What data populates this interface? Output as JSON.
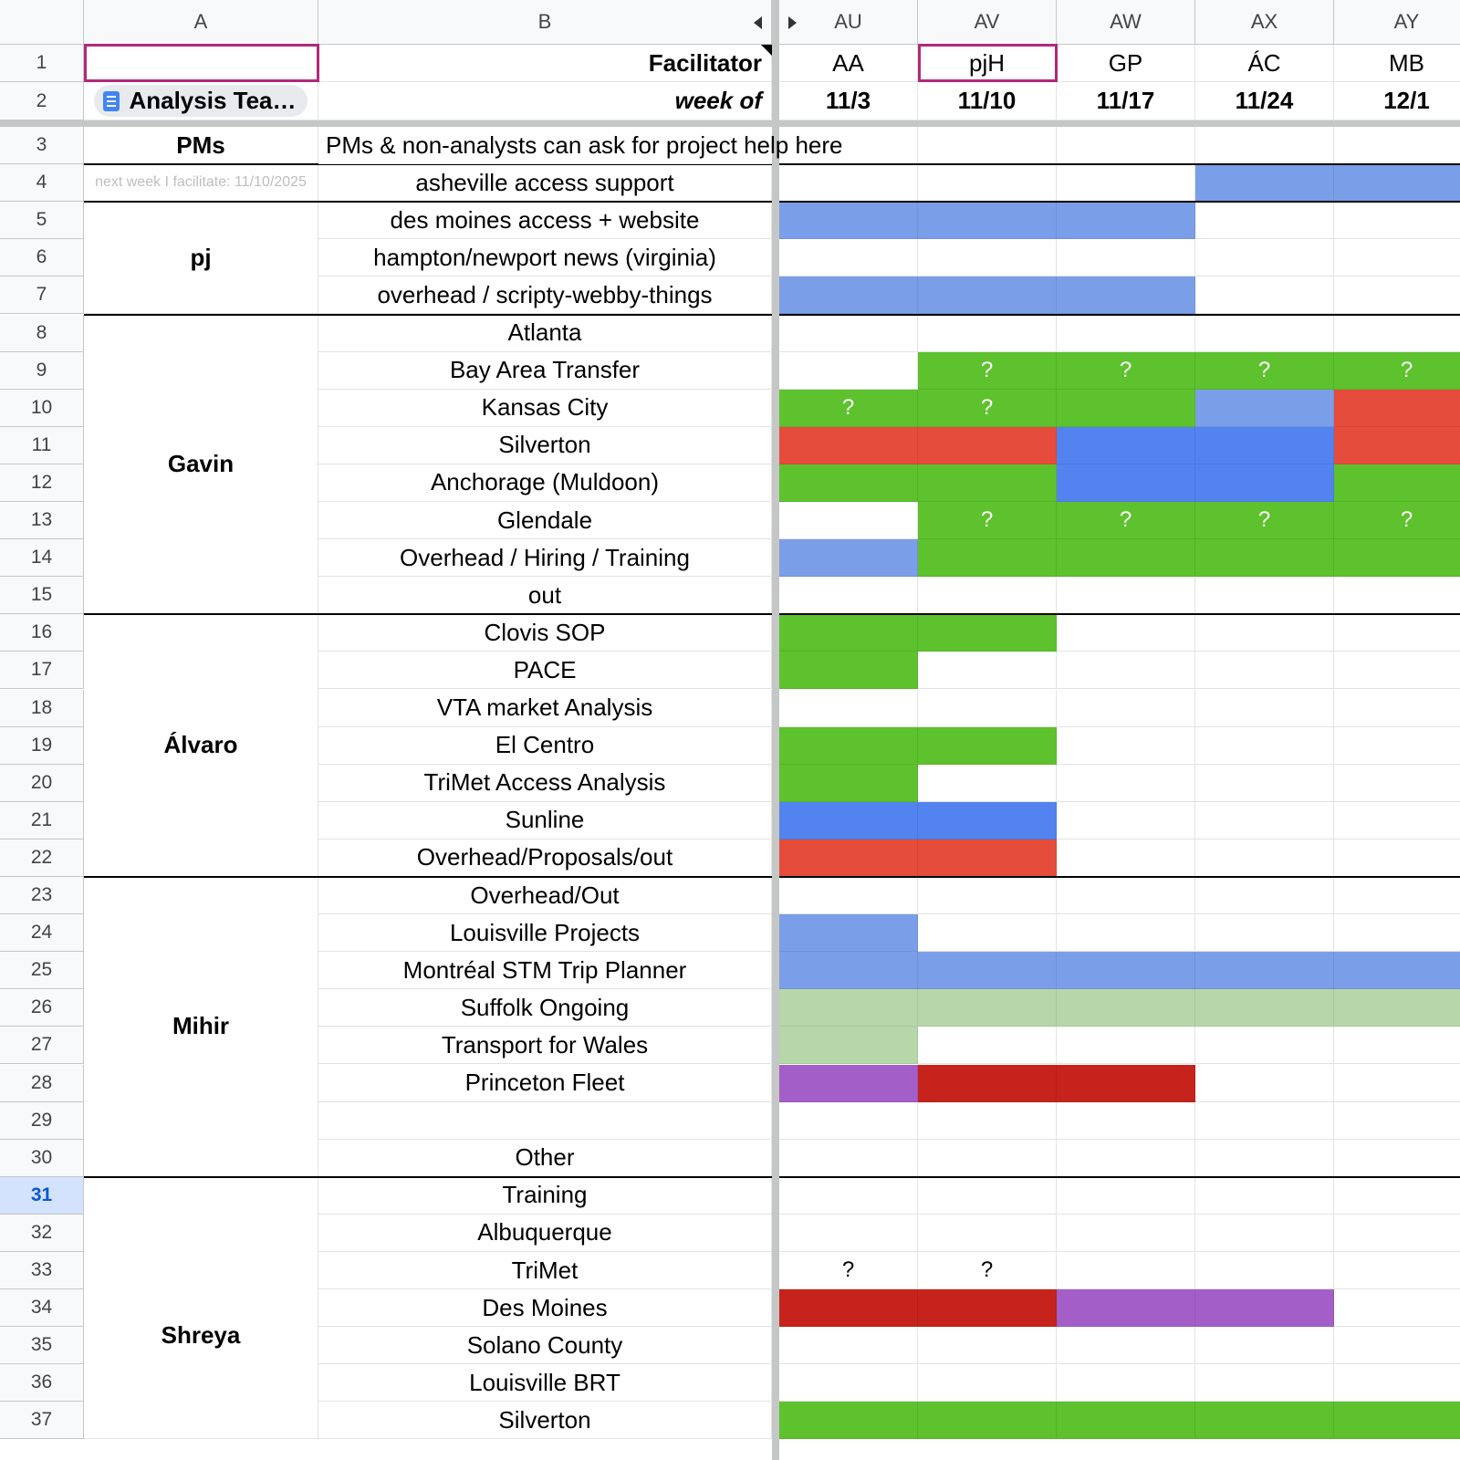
{
  "columns": {
    "row_header": "",
    "A": "A",
    "B": "B",
    "AU": "AU",
    "AV": "AV",
    "AW": "AW",
    "AX": "AX",
    "AY": "AY"
  },
  "header_rows": {
    "facilitator_label": "Facilitator",
    "week_of_label": "week of",
    "facilitators": [
      "AA",
      "pjH",
      "GP",
      "ÁC",
      "MB"
    ],
    "weeks": [
      "11/3",
      "11/10",
      "11/17",
      "11/24",
      "12/1"
    ],
    "chip_label": "Analysis Tea…"
  },
  "pms_row": {
    "label": "PMs",
    "note": "PMs & non-analysts can ask for project help here"
  },
  "facilitate_hint": "next week I facilitate: 11/10/2025",
  "people": [
    "pj",
    "Gavin",
    "Álvaro",
    "Mihir",
    "Shreya"
  ],
  "colors": {
    "blue_light": "#7b9ee8",
    "blue": "#5383ef",
    "green": "#5dc22d",
    "red": "#e54c3c",
    "dark_red": "#c5231b",
    "purple": "#a45ec8",
    "light_green": "#b6d7a8",
    "selection": "#b3287c"
  },
  "rows": [
    {
      "num": "1"
    },
    {
      "num": "2"
    },
    {
      "num": "3"
    },
    {
      "num": "4",
      "project": "asheville access support",
      "cells": [
        "",
        "",
        "",
        "blue_light",
        "blue_light"
      ]
    },
    {
      "num": "5",
      "project": "des moines access + website",
      "cells": [
        "blue_light",
        "blue_light",
        "blue_light",
        "",
        ""
      ]
    },
    {
      "num": "6",
      "project": "hampton/newport news (virginia)",
      "cells": [
        "",
        "",
        "",
        "",
        ""
      ]
    },
    {
      "num": "7",
      "project": "overhead / scripty-webby-things",
      "cells": [
        "blue_light",
        "blue_light",
        "blue_light",
        "",
        ""
      ]
    },
    {
      "num": "8",
      "project": "Atlanta",
      "cells": [
        "",
        "",
        "",
        "",
        ""
      ]
    },
    {
      "num": "9",
      "project": "Bay Area Transfer",
      "cells": [
        "",
        "green",
        "green",
        "green",
        "green"
      ],
      "marks": [
        "",
        "?",
        "?",
        "?",
        "?"
      ]
    },
    {
      "num": "10",
      "project": "Kansas City",
      "cells": [
        "green",
        "green",
        "green",
        "blue_light",
        "red"
      ],
      "marks": [
        "?",
        "?",
        "",
        "",
        ""
      ]
    },
    {
      "num": "11",
      "project": "Silverton",
      "cells": [
        "red",
        "red",
        "blue",
        "blue",
        "red"
      ]
    },
    {
      "num": "12",
      "project": "Anchorage (Muldoon)",
      "cells": [
        "green",
        "green",
        "blue",
        "blue",
        "green"
      ]
    },
    {
      "num": "13",
      "project": "Glendale",
      "cells": [
        "",
        "green",
        "green",
        "green",
        "green"
      ],
      "marks": [
        "",
        "?",
        "?",
        "?",
        "?"
      ]
    },
    {
      "num": "14",
      "project": "Overhead / Hiring / Training",
      "cells": [
        "blue_light",
        "green",
        "green",
        "green",
        "green"
      ]
    },
    {
      "num": "15",
      "project": "out",
      "cells": [
        "",
        "",
        "",
        "",
        ""
      ]
    },
    {
      "num": "16",
      "project": "Clovis SOP",
      "cells": [
        "green",
        "green",
        "",
        "",
        ""
      ]
    },
    {
      "num": "17",
      "project": "PACE",
      "cells": [
        "green",
        "",
        "",
        "",
        ""
      ]
    },
    {
      "num": "18",
      "project": "VTA market Analysis",
      "cells": [
        "",
        "",
        "",
        "",
        ""
      ]
    },
    {
      "num": "19",
      "project": "El Centro",
      "cells": [
        "green",
        "green",
        "",
        "",
        ""
      ]
    },
    {
      "num": "20",
      "project": "TriMet Access Analysis",
      "cells": [
        "green",
        "",
        "",
        "",
        ""
      ]
    },
    {
      "num": "21",
      "project": "Sunline",
      "cells": [
        "blue",
        "blue",
        "",
        "",
        ""
      ]
    },
    {
      "num": "22",
      "project": "Overhead/Proposals/out",
      "cells": [
        "red",
        "red",
        "",
        "",
        ""
      ]
    },
    {
      "num": "23",
      "project": "Overhead/Out",
      "cells": [
        "",
        "",
        "",
        "",
        ""
      ]
    },
    {
      "num": "24",
      "project": "Louisville Projects",
      "cells": [
        "blue_light",
        "",
        "",
        "",
        ""
      ]
    },
    {
      "num": "25",
      "project": "Montréal STM Trip Planner",
      "cells": [
        "blue_light",
        "blue_light",
        "blue_light",
        "blue_light",
        "blue_light"
      ]
    },
    {
      "num": "26",
      "project": "Suffolk Ongoing",
      "cells": [
        "light_green",
        "light_green",
        "light_green",
        "light_green",
        "light_green"
      ]
    },
    {
      "num": "27",
      "project": "Transport for Wales",
      "cells": [
        "light_green",
        "",
        "",
        "",
        ""
      ]
    },
    {
      "num": "28",
      "project": "Princeton Fleet",
      "cells": [
        "purple",
        "dark_red",
        "dark_red",
        "",
        ""
      ]
    },
    {
      "num": "29",
      "project": "",
      "cells": [
        "",
        "",
        "",
        "",
        ""
      ]
    },
    {
      "num": "30",
      "project": "Other",
      "cells": [
        "",
        "",
        "",
        "",
        ""
      ]
    },
    {
      "num": "31",
      "project": "Training",
      "cells": [
        "",
        "",
        "",
        "",
        ""
      ]
    },
    {
      "num": "32",
      "project": "Albuquerque",
      "cells": [
        "",
        "",
        "",
        "",
        ""
      ]
    },
    {
      "num": "33",
      "project": "TriMet",
      "cells": [
        "",
        "",
        "",
        "",
        ""
      ],
      "marks": [
        "?",
        "?",
        "",
        "",
        ""
      ]
    },
    {
      "num": "34",
      "project": "Des Moines",
      "cells": [
        "dark_red",
        "dark_red",
        "purple",
        "purple",
        ""
      ]
    },
    {
      "num": "35",
      "project": "Solano County",
      "cells": [
        "",
        "",
        "",
        "",
        ""
      ]
    },
    {
      "num": "36",
      "project": "Louisville BRT",
      "cells": [
        "",
        "",
        "",
        "",
        ""
      ]
    },
    {
      "num": "37",
      "project": "Silverton",
      "cells": [
        "green",
        "green",
        "green",
        "green",
        "green"
      ]
    }
  ]
}
